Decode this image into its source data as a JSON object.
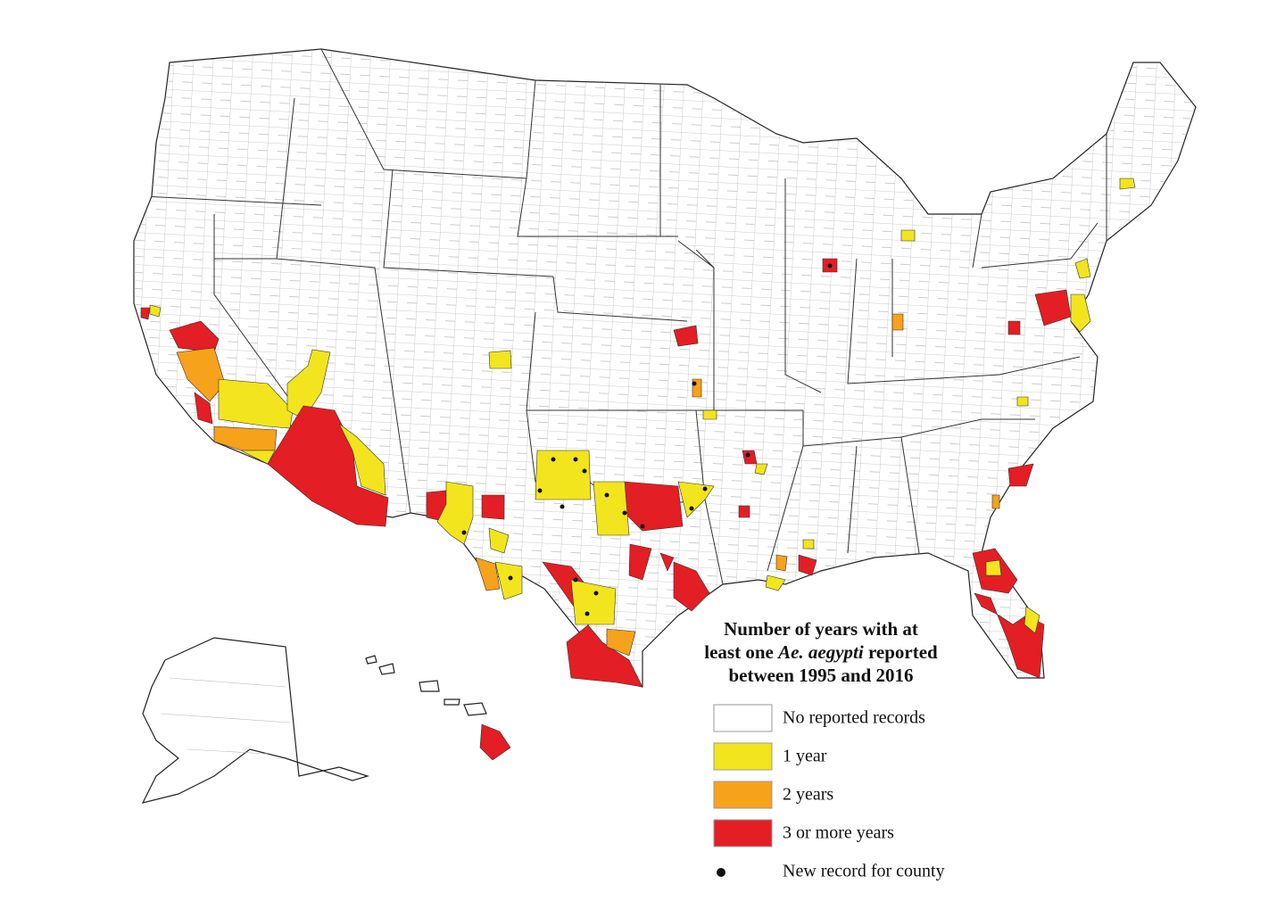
{
  "legend": {
    "title": {
      "line1": "Number of years with at",
      "line2_start": "least one",
      "line2_italic": "Ae. aegypti",
      "line2_end": "reported",
      "line3": "between 1995 and 2016"
    },
    "items": [
      {
        "label": "No reported records",
        "color": "#ffffff"
      },
      {
        "label": "1 year",
        "color": "#f2e51d"
      },
      {
        "label": "2 years",
        "color": "#f7a21b"
      },
      {
        "label": "3 or more years",
        "color": "#e31e24"
      }
    ],
    "dot": {
      "label": "New record for county",
      "color": "#111111"
    }
  }
}
